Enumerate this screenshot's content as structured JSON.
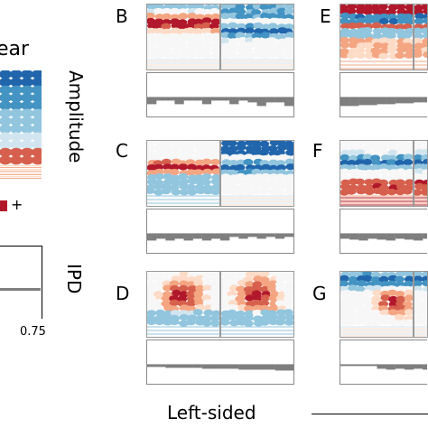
{
  "figure": {
    "partial_title": "ear",
    "amplitude_label": "Amplitude",
    "ipd_label": "IPD",
    "tick_value": "0.75",
    "bottom_label": "Left-sided",
    "colorbar_plus": "+",
    "panels": [
      {
        "letter": "B",
        "style": "band-low"
      },
      {
        "letter": "C",
        "style": "band-mid"
      },
      {
        "letter": "D",
        "style": "blob-center"
      },
      {
        "letter": "E",
        "style": "band-top"
      },
      {
        "letter": "F",
        "style": "band-mid-blue"
      },
      {
        "letter": "G",
        "style": "blob-right"
      }
    ]
  },
  "colors": {
    "dark_red": "#b2182b",
    "red": "#d6604d",
    "light_red": "#f4a582",
    "pale_red": "#fddbc7",
    "pale_blue": "#d1e5f0",
    "light_blue": "#92c5de",
    "blue": "#4393c3",
    "dark_blue": "#2166ac",
    "bar_gray": "#7f7f7f"
  }
}
